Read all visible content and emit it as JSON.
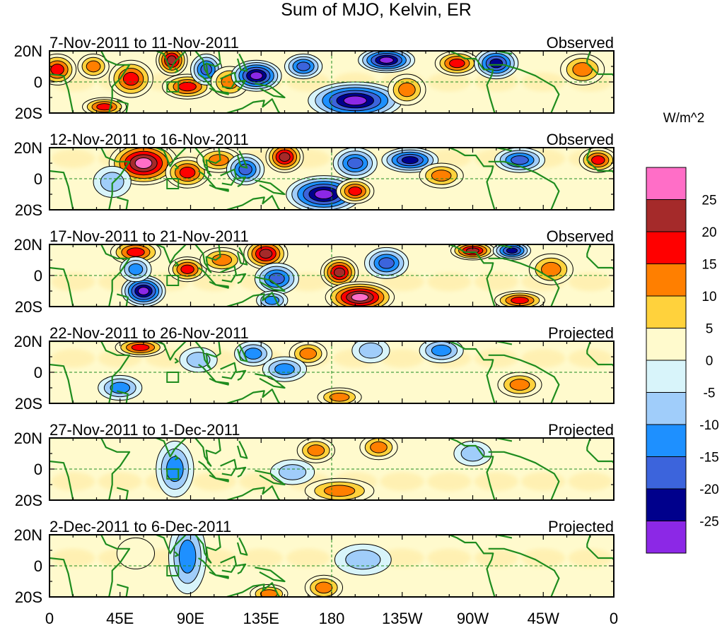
{
  "chart_data": {
    "type": "heatmap",
    "title": "Sum of MJO, Kelvin, ER",
    "units": "W/m^2",
    "x_tick_labels": [
      "0",
      "45E",
      "90E",
      "135E",
      "180",
      "135W",
      "90W",
      "45W",
      "0"
    ],
    "y_tick_labels": [
      "20N",
      "0",
      "20S"
    ],
    "colorbar": {
      "labels": [
        "25",
        "20",
        "15",
        "10",
        "5",
        "0",
        "-5",
        "-10",
        "-15",
        "-20",
        "-25"
      ],
      "colors": [
        "#ff6ec7",
        "#a52a2a",
        "#ff0000",
        "#ff7f00",
        "#ffd23c",
        "#fffacd",
        "#d8f4fa",
        "#a0cdfa",
        "#1e90ff",
        "#3c64dc",
        "#00008c",
        "#8c28e6"
      ]
    },
    "panels": [
      {
        "period": "7-Nov-2011 to 11-Nov-2011",
        "status": "Observed",
        "anomalies": [
          {
            "lon": 5,
            "lat": 8,
            "value": 20,
            "width_deg": 12,
            "height_deg": 10
          },
          {
            "lon": 28,
            "lat": 10,
            "value": 12,
            "width_deg": 10,
            "height_deg": 8
          },
          {
            "lon": 52,
            "lat": 2,
            "value": 18,
            "width_deg": 14,
            "height_deg": 12
          },
          {
            "lon": 78,
            "lat": 14,
            "value": 25,
            "width_deg": 10,
            "height_deg": 10
          },
          {
            "lon": 88,
            "lat": -3,
            "value": 18,
            "width_deg": 16,
            "height_deg": 8
          },
          {
            "lon": 100,
            "lat": 8,
            "value": -20,
            "width_deg": 10,
            "height_deg": 10
          },
          {
            "lon": 115,
            "lat": 0,
            "value": 15,
            "width_deg": 12,
            "height_deg": 10
          },
          {
            "lon": 132,
            "lat": 4,
            "value": -28,
            "width_deg": 16,
            "height_deg": 10
          },
          {
            "lon": 162,
            "lat": 10,
            "value": -18,
            "width_deg": 12,
            "height_deg": 8
          },
          {
            "lon": 195,
            "lat": -12,
            "value": -28,
            "width_deg": 30,
            "height_deg": 12
          },
          {
            "lon": 215,
            "lat": 14,
            "value": -28,
            "width_deg": 18,
            "height_deg": 8
          },
          {
            "lon": 228,
            "lat": -5,
            "value": 12,
            "width_deg": 12,
            "height_deg": 10
          },
          {
            "lon": 260,
            "lat": 12,
            "value": 20,
            "width_deg": 14,
            "height_deg": 8
          },
          {
            "lon": 285,
            "lat": 12,
            "value": -25,
            "width_deg": 14,
            "height_deg": 10
          },
          {
            "lon": 340,
            "lat": 8,
            "value": 15,
            "width_deg": 14,
            "height_deg": 10
          },
          {
            "lon": 35,
            "lat": -16,
            "value": 18,
            "width_deg": 14,
            "height_deg": 6
          }
        ]
      },
      {
        "period": "12-Nov-2011 to 16-Nov-2011",
        "status": "Observed",
        "anomalies": [
          {
            "lon": 60,
            "lat": 10,
            "value": 28,
            "width_deg": 22,
            "height_deg": 14
          },
          {
            "lon": 88,
            "lat": 4,
            "value": 20,
            "width_deg": 14,
            "height_deg": 10
          },
          {
            "lon": 108,
            "lat": 12,
            "value": 15,
            "width_deg": 14,
            "height_deg": 8
          },
          {
            "lon": 125,
            "lat": 6,
            "value": -20,
            "width_deg": 12,
            "height_deg": 10
          },
          {
            "lon": 150,
            "lat": 14,
            "value": 25,
            "width_deg": 12,
            "height_deg": 10
          },
          {
            "lon": 175,
            "lat": -10,
            "value": -28,
            "width_deg": 24,
            "height_deg": 12
          },
          {
            "lon": 195,
            "lat": 10,
            "value": -20,
            "width_deg": 14,
            "height_deg": 10
          },
          {
            "lon": 195,
            "lat": -8,
            "value": 18,
            "width_deg": 12,
            "height_deg": 8
          },
          {
            "lon": 230,
            "lat": 12,
            "value": -25,
            "width_deg": 18,
            "height_deg": 8
          },
          {
            "lon": 250,
            "lat": 2,
            "value": 12,
            "width_deg": 14,
            "height_deg": 8
          },
          {
            "lon": 300,
            "lat": 12,
            "value": -18,
            "width_deg": 16,
            "height_deg": 8
          },
          {
            "lon": 350,
            "lat": 12,
            "value": 20,
            "width_deg": 12,
            "height_deg": 8
          },
          {
            "lon": 40,
            "lat": -2,
            "value": -10,
            "width_deg": 12,
            "height_deg": 10
          }
        ]
      },
      {
        "period": "17-Nov-2011 to 21-Nov-2011",
        "status": "Observed",
        "anomalies": [
          {
            "lon": 55,
            "lat": 15,
            "value": 20,
            "width_deg": 16,
            "height_deg": 8
          },
          {
            "lon": 60,
            "lat": -10,
            "value": -28,
            "width_deg": 14,
            "height_deg": 10
          },
          {
            "lon": 55,
            "lat": 4,
            "value": -15,
            "width_deg": 10,
            "height_deg": 8
          },
          {
            "lon": 88,
            "lat": 4,
            "value": 18,
            "width_deg": 12,
            "height_deg": 8
          },
          {
            "lon": 110,
            "lat": 10,
            "value": 15,
            "width_deg": 14,
            "height_deg": 8
          },
          {
            "lon": 138,
            "lat": 14,
            "value": 22,
            "width_deg": 14,
            "height_deg": 10
          },
          {
            "lon": 145,
            "lat": -2,
            "value": -20,
            "width_deg": 14,
            "height_deg": 10
          },
          {
            "lon": 142,
            "lat": -16,
            "value": -15,
            "width_deg": 10,
            "height_deg": 6
          },
          {
            "lon": 185,
            "lat": 2,
            "value": 22,
            "width_deg": 12,
            "height_deg": 10
          },
          {
            "lon": 198,
            "lat": -14,
            "value": 28,
            "width_deg": 22,
            "height_deg": 10
          },
          {
            "lon": 215,
            "lat": 8,
            "value": -20,
            "width_deg": 14,
            "height_deg": 10
          },
          {
            "lon": 270,
            "lat": 16,
            "value": 25,
            "width_deg": 14,
            "height_deg": 6
          },
          {
            "lon": 295,
            "lat": 16,
            "value": -25,
            "width_deg": 12,
            "height_deg": 6
          },
          {
            "lon": 300,
            "lat": -16,
            "value": 18,
            "width_deg": 16,
            "height_deg": 6
          },
          {
            "lon": 320,
            "lat": 4,
            "value": 12,
            "width_deg": 14,
            "height_deg": 10
          }
        ]
      },
      {
        "period": "22-Nov-2011 to 26-Nov-2011",
        "status": "Projected",
        "anomalies": [
          {
            "lon": 58,
            "lat": 16,
            "value": 20,
            "width_deg": 16,
            "height_deg": 6
          },
          {
            "lon": 45,
            "lat": -10,
            "value": -12,
            "width_deg": 14,
            "height_deg": 8
          },
          {
            "lon": 95,
            "lat": 8,
            "value": -10,
            "width_deg": 12,
            "height_deg": 8
          },
          {
            "lon": 130,
            "lat": 12,
            "value": -12,
            "width_deg": 12,
            "height_deg": 8
          },
          {
            "lon": 165,
            "lat": 12,
            "value": 12,
            "width_deg": 12,
            "height_deg": 8
          },
          {
            "lon": 150,
            "lat": 2,
            "value": -12,
            "width_deg": 14,
            "height_deg": 8
          },
          {
            "lon": 185,
            "lat": -16,
            "value": 15,
            "width_deg": 14,
            "height_deg": 6
          },
          {
            "lon": 205,
            "lat": 14,
            "value": -10,
            "width_deg": 12,
            "height_deg": 8
          },
          {
            "lon": 250,
            "lat": 14,
            "value": -15,
            "width_deg": 14,
            "height_deg": 8
          },
          {
            "lon": 300,
            "lat": -8,
            "value": 12,
            "width_deg": 14,
            "height_deg": 8
          }
        ]
      },
      {
        "period": "27-Nov-2011 to 1-Dec-2011",
        "status": "Projected",
        "anomalies": [
          {
            "lon": 80,
            "lat": 0,
            "value": -12,
            "width_deg": 12,
            "height_deg": 18
          },
          {
            "lon": 170,
            "lat": 12,
            "value": 12,
            "width_deg": 12,
            "height_deg": 8
          },
          {
            "lon": 210,
            "lat": 14,
            "value": 12,
            "width_deg": 12,
            "height_deg": 8
          },
          {
            "lon": 185,
            "lat": -14,
            "value": 12,
            "width_deg": 22,
            "height_deg": 8
          },
          {
            "lon": 155,
            "lat": -2,
            "value": -8,
            "width_deg": 14,
            "height_deg": 8
          },
          {
            "lon": 270,
            "lat": 10,
            "value": -8,
            "width_deg": 12,
            "height_deg": 8
          }
        ]
      },
      {
        "period": "2-Dec-2011 to 6-Dec-2011",
        "status": "Projected",
        "anomalies": [
          {
            "lon": 88,
            "lat": 6,
            "value": -15,
            "width_deg": 12,
            "height_deg": 24
          },
          {
            "lon": 55,
            "lat": 8,
            "value": 5,
            "width_deg": 12,
            "height_deg": 10
          },
          {
            "lon": 140,
            "lat": -18,
            "value": 12,
            "width_deg": 12,
            "height_deg": 6
          },
          {
            "lon": 175,
            "lat": -14,
            "value": 12,
            "width_deg": 12,
            "height_deg": 8
          },
          {
            "lon": 200,
            "lat": 4,
            "value": -6,
            "width_deg": 18,
            "height_deg": 10
          }
        ]
      }
    ]
  }
}
